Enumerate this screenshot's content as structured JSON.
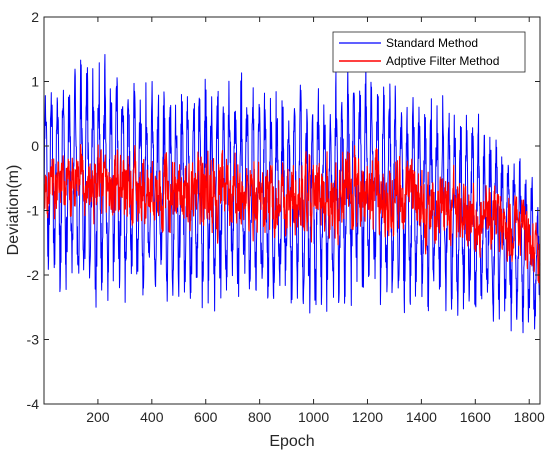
{
  "chart_data": {
    "type": "line",
    "title": "",
    "xlabel": "Epoch",
    "ylabel": "Deviation(m)",
    "xlim": [
      0,
      1840
    ],
    "ylim": [
      -4,
      2
    ],
    "x_ticks": [
      200,
      400,
      600,
      800,
      1000,
      1200,
      1400,
      1600,
      1800
    ],
    "y_ticks": [
      -4,
      -3,
      -2,
      -1,
      0,
      1,
      2
    ],
    "grid": false,
    "legend_position": "top-right",
    "n_epochs": 1840,
    "series": [
      {
        "name": "Standard Method",
        "color": "#0000ff",
        "mean": -0.75,
        "approx_range": [
          -3.25,
          1.6
        ],
        "envelope_by_epoch": {
          "x": [
            0,
            150,
            400,
            600,
            800,
            1000,
            1200,
            1400,
            1600,
            1700,
            1800,
            1840
          ],
          "max": [
            1.0,
            1.6,
            1.0,
            1.2,
            1.1,
            1.0,
            1.35,
            0.9,
            0.6,
            0.2,
            -0.2,
            -0.9
          ],
          "min": [
            -2.1,
            -2.5,
            -2.5,
            -2.55,
            -2.6,
            -2.75,
            -2.55,
            -2.6,
            -2.7,
            -2.8,
            -3.0,
            -3.25
          ]
        }
      },
      {
        "name": "Adptive Filter Method",
        "color": "#ff0000",
        "mean": -0.7,
        "approx_range": [
          -2.7,
          0.5
        ],
        "envelope_by_epoch": {
          "x": [
            0,
            150,
            400,
            600,
            800,
            1000,
            1200,
            1400,
            1600,
            1700,
            1800,
            1840
          ],
          "max": [
            0.1,
            0.4,
            0.2,
            0.3,
            0.2,
            0.2,
            0.5,
            0.1,
            -0.1,
            -0.3,
            -0.6,
            -1.0
          ],
          "min": [
            -1.5,
            -1.6,
            -1.7,
            -1.8,
            -1.8,
            -1.9,
            -1.8,
            -1.9,
            -2.0,
            -2.1,
            -2.4,
            -2.7
          ]
        }
      }
    ]
  }
}
